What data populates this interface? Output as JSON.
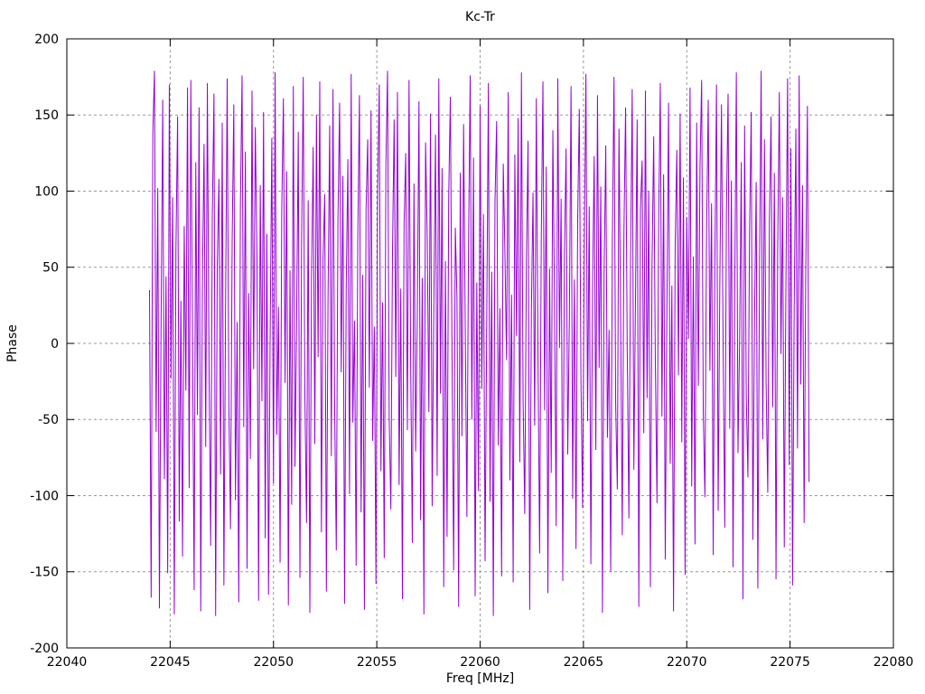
{
  "chart_data": {
    "type": "line",
    "title": "Kc-Tr",
    "xlabel": "Freq [MHz]",
    "ylabel": "Phase",
    "xlim": [
      22040,
      22080
    ],
    "ylim": [
      -200,
      200
    ],
    "xticks": [
      22040,
      22045,
      22050,
      22055,
      22060,
      22065,
      22070,
      22075,
      22080
    ],
    "yticks": [
      -200,
      -150,
      -100,
      -50,
      0,
      50,
      100,
      150,
      200
    ],
    "grid": true,
    "legend_position": "none",
    "series": [
      {
        "name": "Kc-Tr",
        "color": "#9400d3",
        "x_start": 22044.0,
        "x_step": 0.08,
        "values": [
          35,
          -167,
          138,
          179,
          -58,
          102,
          -174,
          12,
          160,
          -89,
          44,
          -151,
          170,
          -23,
          96,
          -178,
          63,
          149,
          -117,
          28,
          -140,
          77,
          -31,
          168,
          -95,
          173,
          8,
          -162,
          119,
          -47,
          155,
          -176,
          39,
          131,
          -68,
          171,
          -12,
          -133,
          84,
          164,
          -179,
          52,
          108,
          -86,
          145,
          -159,
          21,
          174,
          -41,
          -122,
          67,
          157,
          -103,
          14,
          -170,
          91,
          176,
          -55,
          126,
          -148,
          33,
          -76,
          166,
          -17,
          142,
          59,
          -169,
          104,
          -38,
          152,
          -128,
          72,
          -165,
          7,
          135,
          -92,
          178,
          -60,
          24,
          -144,
          87,
          161,
          -26,
          113,
          -172,
          48,
          -106,
          169,
          -81,
          16,
          139,
          -154,
          64,
          175,
          -35,
          -118,
          94,
          -177,
          41,
          129,
          -66,
          150,
          -9,
          172,
          -124,
          56,
          98,
          -163,
          29,
          143,
          -74,
          167,
          -43,
          -136,
          82,
          158,
          -19,
          110,
          -171,
          37,
          121,
          -99,
          177,
          -52,
          15,
          -146,
          69,
          163,
          -111,
          45,
          -175,
          88,
          134,
          -29,
          153,
          -64,
          11,
          -158,
          101,
          170,
          -84,
          27,
          -141,
          117,
          179,
          -49,
          -109,
          61,
          147,
          -22,
          165,
          -93,
          36,
          -168,
          79,
          125,
          -57,
          173,
          -14,
          -131,
          105,
          -71,
          18,
          159,
          -116,
          43,
          -178,
          132,
          71,
          -45,
          151,
          -107,
          25,
          137,
          -87,
          174,
          -33,
          115,
          -160,
          54,
          -127,
          97,
          162,
          -6,
          -149,
          76,
          30,
          -173,
          112,
          -61,
          144,
          10,
          -114,
          66,
          176,
          -50,
          122,
          -166,
          40,
          -97,
          156,
          -30,
          85,
          -143,
          13,
          171,
          -104,
          47,
          -179,
          93,
          146,
          -67,
          23,
          -153,
          118,
          60,
          -11,
          165,
          -90,
          32,
          -157,
          124,
          5,
          148,
          -78,
          178,
          -37,
          -112,
          55,
          133,
          -175,
          20,
          99,
          -54,
          161,
          -8,
          -138,
          70,
          172,
          -44,
          116,
          -164,
          49,
          -85,
          140,
          26,
          -120,
          174,
          -3,
          95,
          -156,
          58,
          128,
          -73,
          17,
          169,
          -102,
          42,
          -135,
          80,
          154,
          -24,
          -108,
          62,
          177,
          -51,
          90,
          -145,
          34,
          123,
          -70,
          163,
          -16,
          103,
          -177,
          46,
          130,
          -62,
          9,
          -150,
          68,
          175,
          -40,
          -96,
          141,
          19,
          -126,
          73,
          155,
          -5,
          -115,
          53,
          167,
          -83,
          31,
          147,
          -173,
          89,
          120,
          -59,
          166,
          -36,
          100,
          -160,
          51,
          136,
          -13,
          -105,
          78,
          171,
          -48,
          111,
          -142,
          22,
          158,
          -79,
          38,
          -176,
          65,
          127,
          -21,
          151,
          -65,
          109,
          -152,
          83,
          3,
          168,
          -94,
          57,
          -132,
          145,
          -28,
          114,
          173,
          -46,
          -101,
          75,
          160,
          -18,
          92,
          -139,
          50,
          170,
          -110,
          37,
          157,
          -2,
          -121,
          86,
          164,
          -56,
          107,
          -147,
          29,
          178,
          -72,
          4,
          119,
          -168,
          143,
          -34,
          -88,
          74,
          152,
          -129,
          16,
          106,
          -161,
          45,
          179,
          -63,
          134,
          -25,
          -98,
          81,
          149,
          -42,
          112,
          -155,
          59,
          165,
          -7,
          96,
          -134,
          39,
          174,
          -80,
          128,
          -159,
          23,
          141,
          -69,
          176,
          -27,
          104,
          -118,
          48,
          156,
          -91
        ]
      }
    ]
  },
  "layout_colors": {
    "background": "#ffffff",
    "text": "#000000",
    "border": "#000000",
    "grid": "#999999",
    "series": "#9400d3"
  }
}
